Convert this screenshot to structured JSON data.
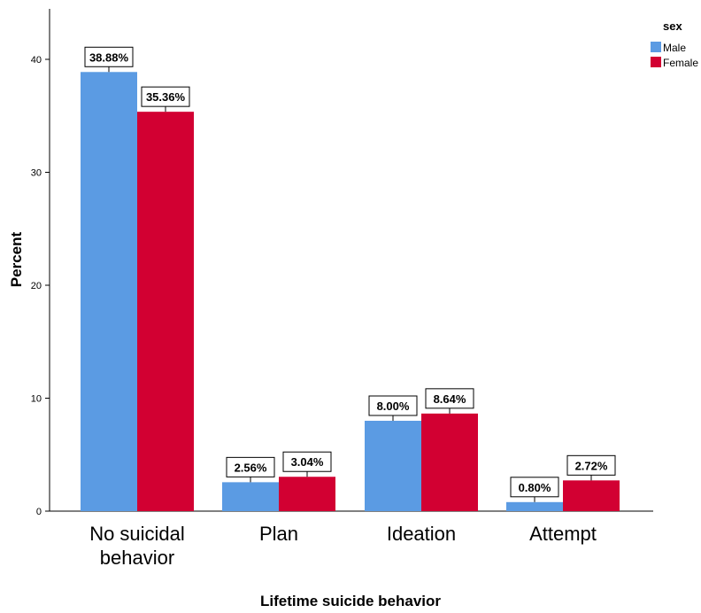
{
  "chart_data": {
    "type": "bar",
    "categories": [
      "No suicidal behavior",
      "Plan",
      "Ideation",
      "Attempt"
    ],
    "category_lines": [
      [
        "No suicidal",
        "behavior"
      ],
      [
        "Plan"
      ],
      [
        "Ideation"
      ],
      [
        "Attempt"
      ]
    ],
    "series": [
      {
        "name": "Male",
        "color": "#5B9BE3",
        "values": [
          38.88,
          2.56,
          8.0,
          0.8
        ],
        "labels": [
          "38.88%",
          "2.56%",
          "8.00%",
          "0.80%"
        ]
      },
      {
        "name": "Female",
        "color": "#D20032",
        "values": [
          35.36,
          3.04,
          8.64,
          2.72
        ],
        "labels": [
          "35.36%",
          "3.04%",
          "8.64%",
          "2.72%"
        ]
      }
    ],
    "xlabel": "Lifetime suicide behavior",
    "ylabel": "Percent",
    "legend_title": "sex",
    "legend_position": "top-right",
    "yticks": [
      0,
      10,
      20,
      30,
      40
    ],
    "ylim": [
      0,
      43
    ],
    "grid": false
  }
}
